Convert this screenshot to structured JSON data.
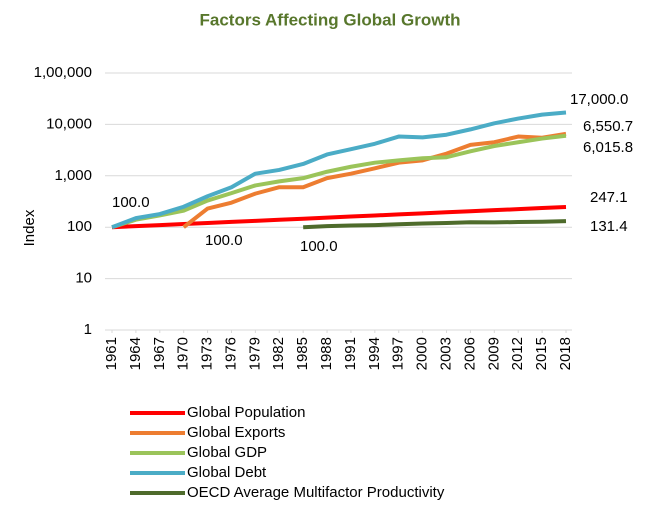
{
  "chart_data": {
    "type": "line",
    "title": "Factors Affecting Global Growth",
    "ylabel": "Index",
    "log_scale": true,
    "grid": true,
    "legend": "bottom",
    "x": [
      1961,
      1964,
      1967,
      1970,
      1973,
      1976,
      1979,
      1982,
      1985,
      1988,
      1991,
      1994,
      1997,
      2000,
      2003,
      2006,
      2009,
      2012,
      2015,
      2018
    ],
    "xlim": [
      1961,
      2018
    ],
    "xticks": [
      1961,
      1964,
      1967,
      1970,
      1973,
      1976,
      1979,
      1982,
      1985,
      1988,
      1991,
      1994,
      1997,
      2000,
      2003,
      2006,
      2009,
      2012,
      2015,
      2018
    ],
    "ylim": [
      1,
      100000
    ],
    "yticks": [
      1,
      10,
      100,
      {
        "value": 1000,
        "label": "1,000"
      },
      {
        "value": 10000,
        "label": "10,000"
      },
      {
        "value": 100000,
        "label": "1,00,000"
      }
    ],
    "series": [
      {
        "name": "Global Population",
        "color": "#ff0000",
        "values": [
          100,
          104.9,
          110.0,
          115.4,
          121.0,
          126.9,
          133.1,
          139.6,
          146.4,
          153.6,
          161.1,
          168.9,
          177.2,
          185.8,
          194.9,
          204.4,
          214.4,
          224.8,
          235.8,
          247.1
        ]
      },
      {
        "name": "Global Exports",
        "color": "#ed7d31",
        "values": [
          null,
          null,
          null,
          100,
          230,
          300,
          450,
          600,
          600,
          900,
          1100,
          1400,
          1800,
          2000,
          2700,
          4000,
          4500,
          5800,
          5500,
          6550.7
        ]
      },
      {
        "name": "Global GDP",
        "color": "#9bc45a",
        "values": [
          100,
          140,
          170,
          210,
          330,
          460,
          650,
          780,
          900,
          1200,
          1500,
          1800,
          2000,
          2200,
          2300,
          3000,
          3800,
          4500,
          5300,
          6015.8
        ]
      },
      {
        "name": "Global Debt",
        "color": "#4bacc6",
        "values": [
          100,
          150,
          180,
          250,
          400,
          600,
          1100,
          1300,
          1700,
          2600,
          3300,
          4200,
          5800,
          5600,
          6300,
          8000,
          10500,
          13000,
          15500,
          17000
        ]
      },
      {
        "name": "OECD Average Multifactor Productivity",
        "color": "#4e6b2b",
        "values": [
          null,
          null,
          null,
          null,
          null,
          null,
          null,
          null,
          100,
          105,
          108,
          110,
          114,
          118,
          121,
          125,
          124,
          126,
          128,
          131.4
        ]
      }
    ],
    "annotations": [
      "17,000.0",
      "6,550.7",
      "6,015.8",
      "247.1",
      "131.4",
      "100.0",
      "100.0",
      "100.0"
    ]
  }
}
